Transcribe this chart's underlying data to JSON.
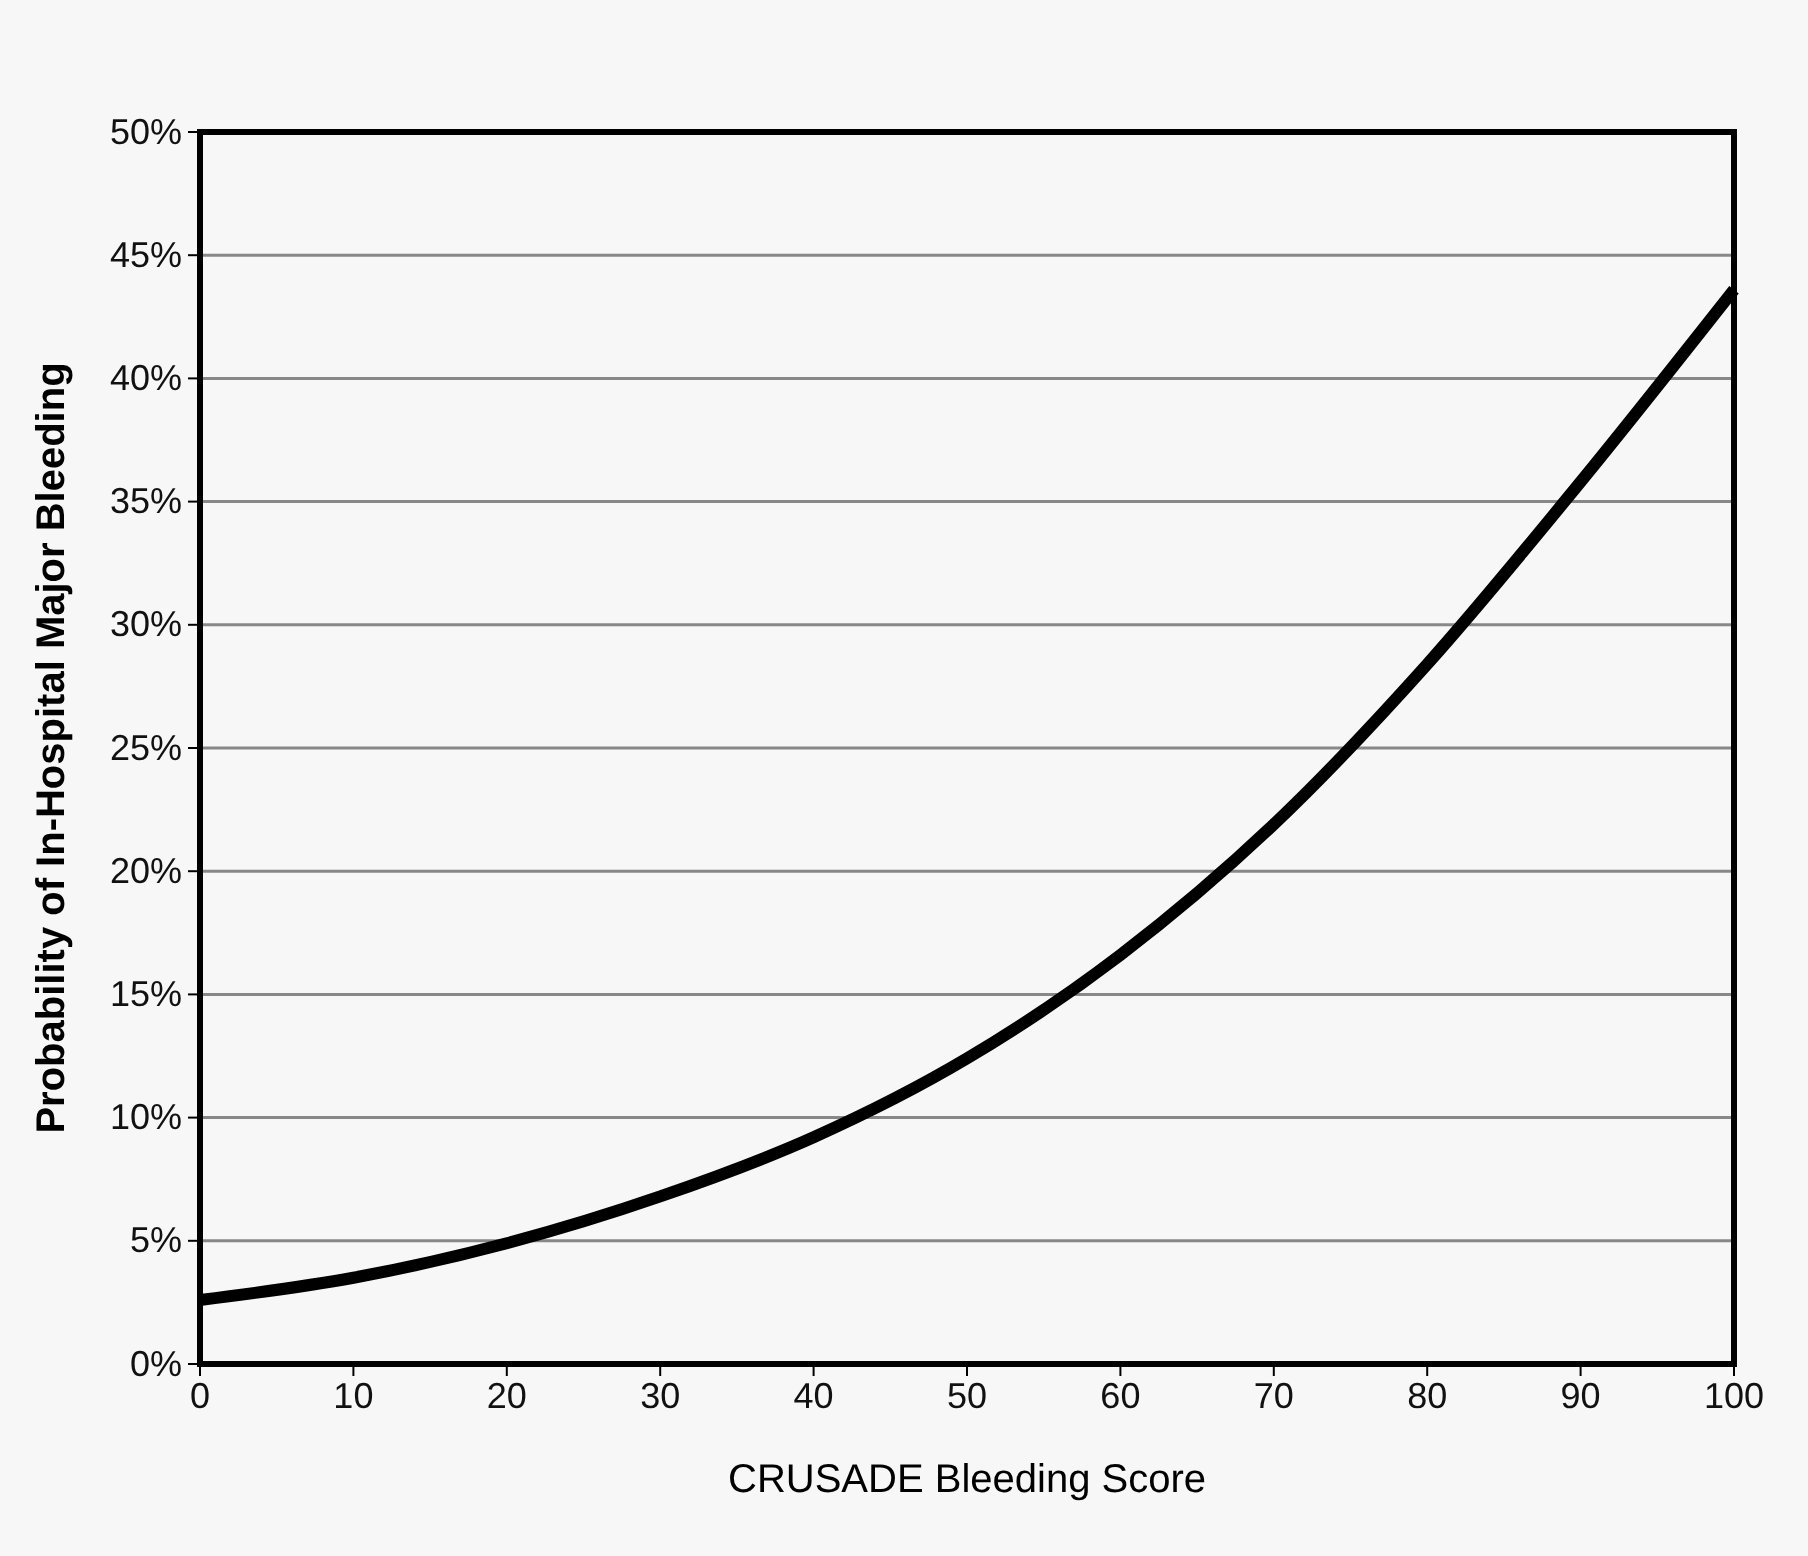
{
  "chart_data": {
    "type": "line",
    "xlabel": "CRUSADE Bleeding Score",
    "ylabel": "Probability of In-Hospital Major Bleeding",
    "x": [
      0,
      10,
      20,
      30,
      40,
      50,
      60,
      70,
      80,
      90,
      100
    ],
    "series": [
      {
        "color": "#000000",
        "values": [
          2.6,
          3.5,
          4.9,
          6.8,
          9.2,
          12.4,
          16.6,
          21.9,
          28.4,
          35.8,
          43.6
        ]
      }
    ],
    "xlim": [
      0,
      100
    ],
    "xticks": [
      0,
      10,
      20,
      30,
      40,
      50,
      60,
      70,
      80,
      90,
      100
    ],
    "ylim": [
      0,
      50
    ],
    "yticks": [
      {
        "value": 0,
        "label": "0%"
      },
      {
        "value": 5,
        "label": "5%"
      },
      {
        "value": 10,
        "label": "10%"
      },
      {
        "value": 15,
        "label": "15%"
      },
      {
        "value": 20,
        "label": "20%"
      },
      {
        "value": 25,
        "label": "25%"
      },
      {
        "value": 30,
        "label": "30%"
      },
      {
        "value": 35,
        "label": "35%"
      },
      {
        "value": 40,
        "label": "40%"
      },
      {
        "value": 45,
        "label": "45%"
      },
      {
        "value": 50,
        "label": "50%"
      }
    ],
    "grid": "y",
    "marker": "none",
    "line_style": "solid"
  }
}
